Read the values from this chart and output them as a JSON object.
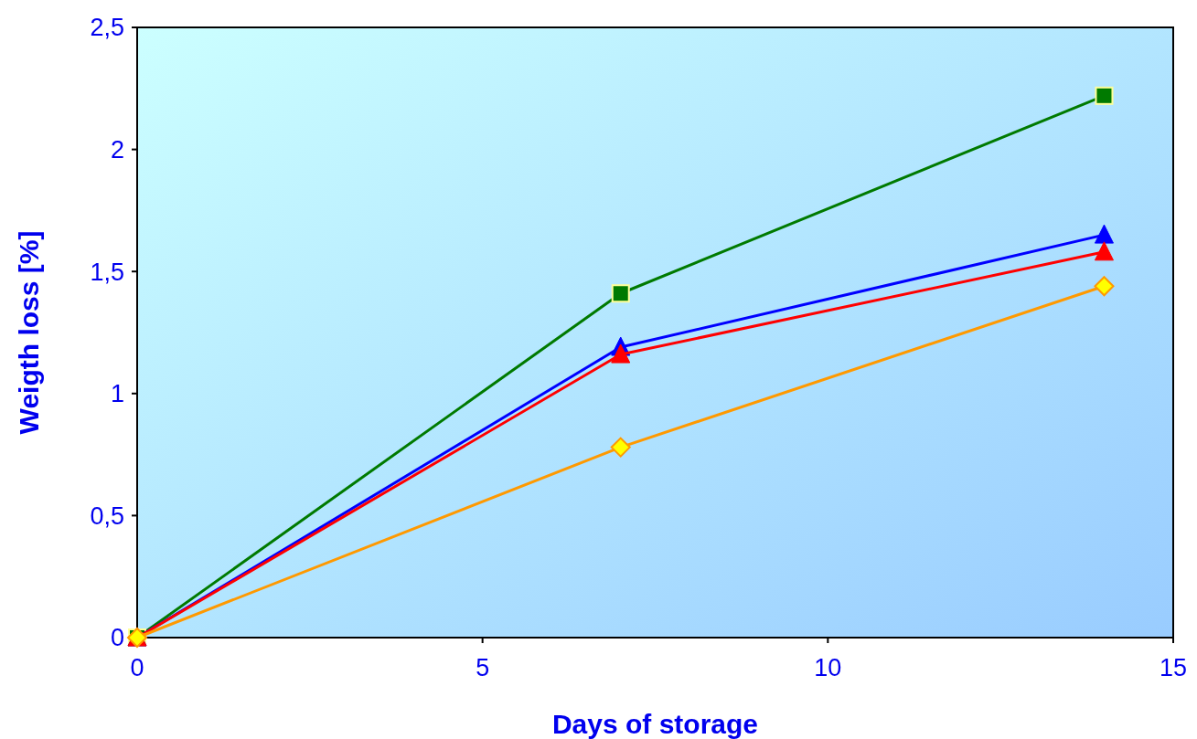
{
  "chart_data": {
    "type": "line",
    "xlabel": "Days of storage",
    "ylabel": "Weigth loss [%]",
    "x": [
      0,
      7,
      14
    ],
    "series": [
      {
        "color": "#007a00",
        "values": [
          0,
          1.41,
          2.22
        ],
        "marker": "square"
      },
      {
        "color": "#0000ff",
        "values": [
          0,
          1.19,
          1.65
        ],
        "marker": "triangle"
      },
      {
        "color": "#ff0000",
        "values": [
          0,
          1.16,
          1.58
        ],
        "marker": "triangle"
      },
      {
        "color": "#ff9900",
        "values": [
          0,
          0.78,
          1.44
        ],
        "marker": "diamond"
      }
    ],
    "xlim": [
      0,
      15
    ],
    "xticks": [
      0,
      5,
      10,
      15
    ],
    "ylim": [
      0,
      2.5
    ],
    "yticks": [
      0,
      {
        "value": 0.5,
        "label": "0,5"
      },
      1,
      {
        "value": 1.5,
        "label": "1,5"
      },
      2,
      {
        "value": 2.5,
        "label": "2,5"
      }
    ],
    "grid": false
  }
}
